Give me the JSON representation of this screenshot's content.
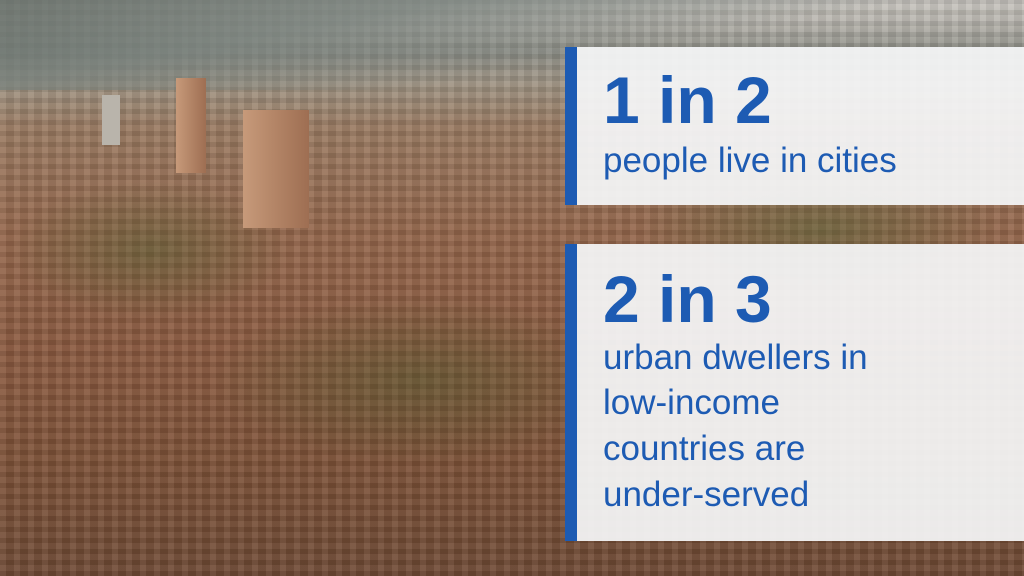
{
  "background": {
    "description_icon": "city-aerial-photo"
  },
  "colors": {
    "accent": "#1d5bb3",
    "panel": "#f5f6f8"
  },
  "stats": [
    {
      "headline": "1 in 2",
      "lines": [
        "people live in cities"
      ]
    },
    {
      "headline": "2 in 3",
      "lines": [
        "urban dwellers in",
        "low-income",
        "countries are",
        "under-served"
      ]
    }
  ]
}
